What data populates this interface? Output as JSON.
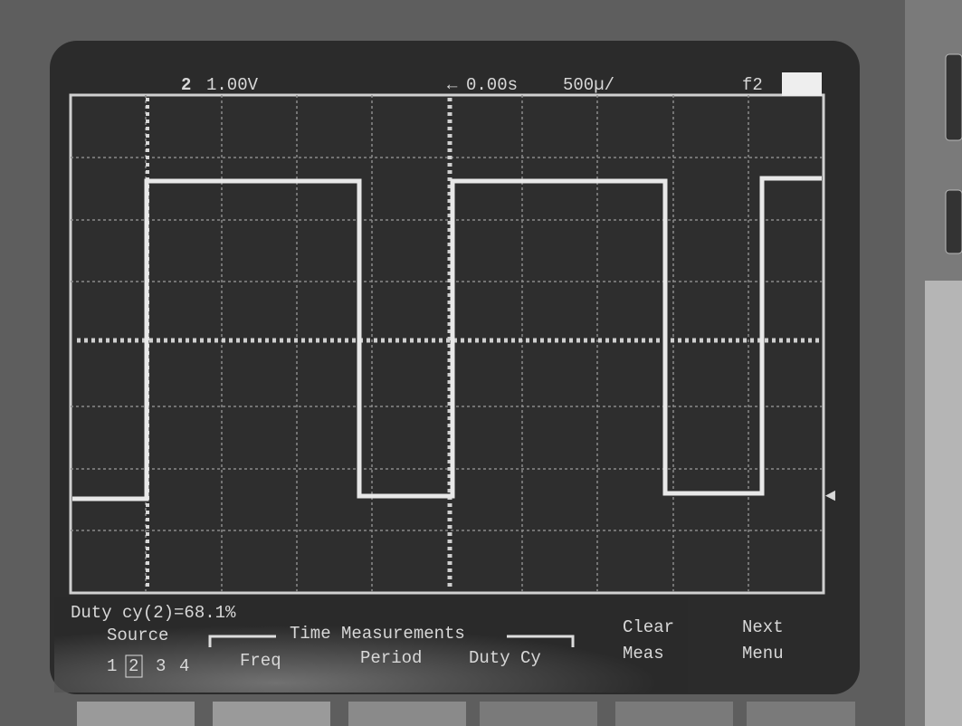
{
  "status": {
    "channel": "2",
    "volts_per_div": "1.00V",
    "delay": "0.00s",
    "time_per_div": "500µ/",
    "trigger": "f2"
  },
  "measurement": "Duty cy(2)=68.1%",
  "softkeys": {
    "source_label": "Source",
    "sources": [
      "1",
      "2",
      "3",
      "4"
    ],
    "group_label": "Time Measurements",
    "freq": "Freq",
    "period": "Period",
    "duty": "Duty Cy",
    "clear": [
      "Clear",
      "Meas"
    ],
    "next": [
      "Next",
      "Menu"
    ]
  }
}
